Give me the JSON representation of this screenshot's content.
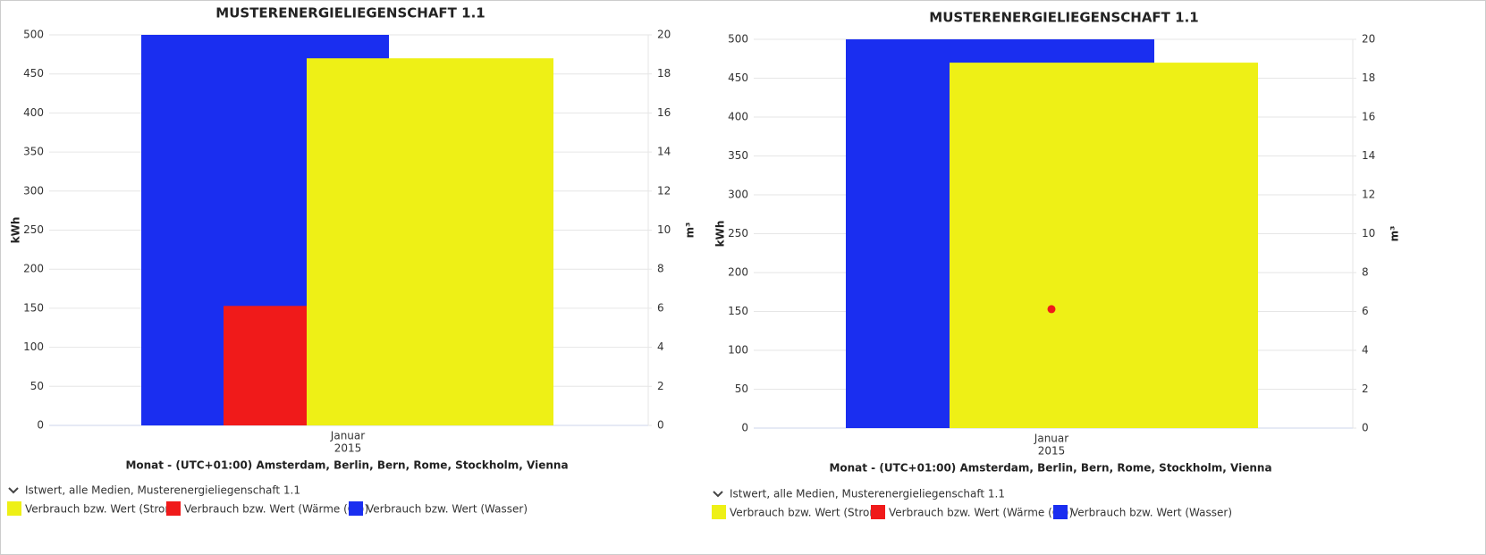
{
  "chart_data": [
    {
      "type": "bar",
      "title": "MUSTERENERGIELIEGENSCHAFT 1.1",
      "categories": [
        "Januar"
      ],
      "category_group": "2015",
      "x_label": "Monat - (UTC+01:00) Amsterdam, Berlin, Bern, Rome, Stockholm, Vienna",
      "y_label": "kWh",
      "y2_label": "m³",
      "ylim": [
        0,
        500
      ],
      "yticks": [
        0,
        50,
        100,
        150,
        200,
        250,
        300,
        350,
        400,
        450,
        500
      ],
      "y2lim": [
        0,
        20
      ],
      "y2ticks": [
        0,
        2,
        4,
        6,
        8,
        10,
        12,
        14,
        16,
        18,
        20
      ],
      "grid": true,
      "legend_title": "Istwert, alle Medien, Musterenergieliegenschaft 1.1",
      "series": [
        {
          "name": "Verbrauch bzw. Wert (Strom)",
          "color": "#eef016",
          "values": [
            470
          ],
          "mark": "bar"
        },
        {
          "name": "Verbrauch bzw. Wert (Wärme (Gt))",
          "color": "#f01a1a",
          "values": [
            153
          ],
          "mark": "bar"
        },
        {
          "name": "Verbrauch bzw. Wert (Wasser)",
          "color": "#1a2ef0",
          "values": [
            20
          ],
          "axis": "y2",
          "mark": "bar"
        }
      ]
    },
    {
      "type": "bar",
      "title": "MUSTERENERGIELIEGENSCHAFT 1.1",
      "categories": [
        "Januar"
      ],
      "category_group": "2015",
      "x_label": "Monat - (UTC+01:00) Amsterdam, Berlin, Bern, Rome, Stockholm, Vienna",
      "y_label": "kWh",
      "y2_label": "m³",
      "ylim": [
        0,
        500
      ],
      "yticks": [
        0,
        50,
        100,
        150,
        200,
        250,
        300,
        350,
        400,
        450,
        500
      ],
      "y2lim": [
        0,
        20
      ],
      "y2ticks": [
        0,
        2,
        4,
        6,
        8,
        10,
        12,
        14,
        16,
        18,
        20
      ],
      "grid": true,
      "legend_title": "Istwert, alle Medien, Musterenergieliegenschaft 1.1",
      "series": [
        {
          "name": "Verbrauch bzw. Wert (Strom)",
          "color": "#eef016",
          "values": [
            470
          ],
          "mark": "bar"
        },
        {
          "name": "Verbrauch bzw. Wert (Wärme (Gt))",
          "color": "#f01a1a",
          "values": [
            153
          ],
          "mark": "point"
        },
        {
          "name": "Verbrauch bzw. Wert (Wasser)",
          "color": "#1a2ef0",
          "values": [
            20
          ],
          "axis": "y2",
          "mark": "bar"
        }
      ]
    }
  ]
}
